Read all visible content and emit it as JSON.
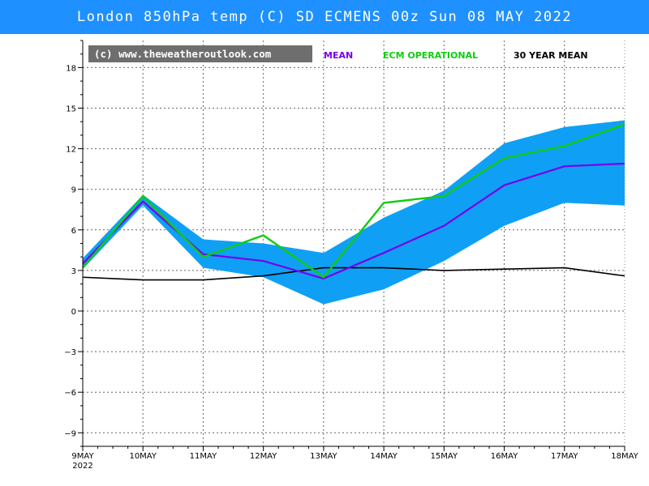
{
  "title": "London 850hPa temp (C) SD ECMENS 00z Sun 08 MAY 2022",
  "credit": "(c) www.theweatheroutlook.com",
  "colors": {
    "title_bar": "#1e90ff",
    "spread": "#0fa0f5",
    "mean": "#7700ee",
    "operational": "#11cc11",
    "climate": "#000000",
    "credit_box": "#6e6e6e"
  },
  "chart_data": {
    "type": "line",
    "title": "London 850hPa temp (C) SD ECMENS 00z Sun 08 MAY 2022",
    "xlabel": "",
    "ylabel": "",
    "x": [
      "9MAY",
      "10MAY",
      "11MAY",
      "12MAY",
      "13MAY",
      "14MAY",
      "15MAY",
      "16MAY",
      "17MAY",
      "18MAY"
    ],
    "x_extra_label": "2022",
    "ylim": [
      -10,
      20
    ],
    "yticks": [
      -9,
      -6,
      -3,
      0,
      3,
      6,
      9,
      12,
      15,
      18
    ],
    "grid": true,
    "legend": [
      "MEAN",
      "ECM OPERATIONAL",
      "30 YEAR MEAN"
    ],
    "band": {
      "x": [
        0,
        1,
        2,
        3,
        4,
        5,
        6,
        7,
        8,
        9
      ],
      "upper": [
        3.9,
        8.6,
        5.3,
        5.0,
        4.3,
        6.9,
        8.9,
        12.4,
        13.6,
        14.1
      ],
      "lower": [
        3.1,
        7.8,
        3.2,
        2.5,
        0.5,
        1.6,
        3.7,
        6.3,
        8.0,
        7.8
      ]
    },
    "series": [
      {
        "name": "MEAN",
        "color": "#7700ee",
        "x": [
          0,
          1,
          2,
          3,
          4,
          5,
          6,
          7,
          8,
          9
        ],
        "values": [
          3.5,
          8.1,
          4.2,
          3.7,
          2.4,
          4.3,
          6.3,
          9.3,
          10.7,
          10.9
        ]
      },
      {
        "name": "ECM OPERATIONAL",
        "color": "#11cc11",
        "x": [
          0,
          1,
          2,
          3,
          4,
          5,
          6,
          7,
          8,
          9
        ],
        "values": [
          3.2,
          8.5,
          4.0,
          5.6,
          2.5,
          8.0,
          8.5,
          11.3,
          12.2,
          13.8
        ]
      },
      {
        "name": "30 YEAR MEAN",
        "color": "#000000",
        "x": [
          0,
          0.5,
          1,
          1.5,
          2,
          3,
          4,
          5,
          6,
          7,
          8,
          9
        ],
        "values": [
          2.5,
          2.4,
          2.3,
          2.3,
          2.3,
          2.6,
          3.2,
          3.2,
          3.0,
          3.1,
          3.2,
          2.6
        ]
      }
    ]
  }
}
